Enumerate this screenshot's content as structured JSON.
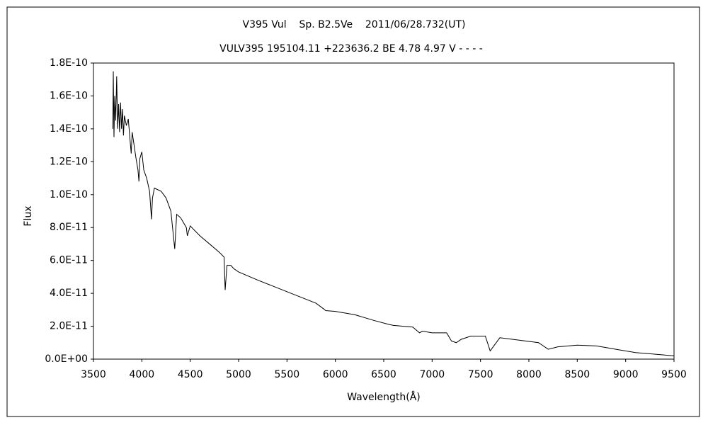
{
  "chart_data": {
    "type": "line",
    "title": "V395 Vul    Sp. B2.5Ve    2011/06/28.732(UT)",
    "subtitle": "VULV395 195104.11 +223636.2 BE 4.78 4.97 V - - - -",
    "xlabel": "Wavelength(Å)",
    "ylabel": "Flux",
    "xlim": [
      3500,
      9500
    ],
    "xticks": [
      3500,
      4000,
      4500,
      5000,
      5500,
      6000,
      6500,
      7000,
      7500,
      8000,
      8500,
      9000,
      9500
    ],
    "ylim": [
      0,
      1.8e-10
    ],
    "yticks": [
      {
        "value": 0,
        "label": "0.0E+00"
      },
      {
        "value": 2e-11,
        "label": "2.0E-11"
      },
      {
        "value": 4e-11,
        "label": "4.0E-11"
      },
      {
        "value": 6e-11,
        "label": "6.0E-11"
      },
      {
        "value": 8e-11,
        "label": "8.0E-11"
      },
      {
        "value": 1e-10,
        "label": "1.0E-10"
      },
      {
        "value": 1.2e-10,
        "label": "1.2E-10"
      },
      {
        "value": 1.4e-10,
        "label": "1.4E-10"
      },
      {
        "value": 1.6e-10,
        "label": "1.6E-10"
      },
      {
        "value": 1.8e-10,
        "label": "1.8E-10"
      }
    ],
    "grid": false,
    "series": [
      {
        "color": "#000000",
        "x": [
          3700,
          3705,
          3712,
          3720,
          3730,
          3740,
          3750,
          3760,
          3770,
          3780,
          3790,
          3800,
          3810,
          3820,
          3840,
          3860,
          3880,
          3890,
          3900,
          3920,
          3940,
          3960,
          3970,
          3980,
          4000,
          4020,
          4050,
          4080,
          4100,
          4110,
          4130,
          4200,
          4250,
          4300,
          4340,
          4360,
          4400,
          4460,
          4470,
          4500,
          4600,
          4700,
          4800,
          4850,
          4861,
          4880,
          4920,
          4950,
          5000,
          5200,
          5500,
          5800,
          5880,
          5900,
          6000,
          6200,
          6400,
          6560,
          6600,
          6800,
          6870,
          6900,
          7000,
          7150,
          7200,
          7250,
          7300,
          7400,
          7550,
          7600,
          7650,
          7700,
          7900,
          8100,
          8200,
          8300,
          8500,
          8700,
          8900,
          9100,
          9300,
          9500
        ],
        "values": [
          1.4e-10,
          1.75e-10,
          1.35e-10,
          1.6e-10,
          1.45e-10,
          1.72e-10,
          1.4e-10,
          1.55e-10,
          1.38e-10,
          1.56e-10,
          1.4e-10,
          1.52e-10,
          1.36e-10,
          1.48e-10,
          1.42e-10,
          1.46e-10,
          1.32e-10,
          1.25e-10,
          1.38e-10,
          1.3e-10,
          1.22e-10,
          1.15e-10,
          1.08e-10,
          1.22e-10,
          1.26e-10,
          1.15e-10,
          1.1e-10,
          1.02e-10,
          8.5e-11,
          9.8e-11,
          1.04e-10,
          1.02e-10,
          9.8e-11,
          9e-11,
          6.7e-11,
          8.8e-11,
          8.6e-11,
          8e-11,
          7.5e-11,
          8.1e-11,
          7.5e-11,
          7e-11,
          6.5e-11,
          6.2e-11,
          4.2e-11,
          5.7e-11,
          5.7e-11,
          5.5e-11,
          5.3e-11,
          4.8e-11,
          4.1e-11,
          3.4e-11,
          3.05e-11,
          2.95e-11,
          2.9e-11,
          2.7e-11,
          2.35e-11,
          2.1e-11,
          2.05e-11,
          1.95e-11,
          1.6e-11,
          1.7e-11,
          1.6e-11,
          1.6e-11,
          1.1e-11,
          1e-11,
          1.2e-11,
          1.4e-11,
          1.4e-11,
          5e-12,
          9e-12,
          1.3e-11,
          1.15e-11,
          1e-11,
          6e-12,
          7.5e-12,
          8.5e-12,
          8e-12,
          6e-12,
          4e-12,
          3e-12,
          2e-12
        ]
      }
    ]
  }
}
